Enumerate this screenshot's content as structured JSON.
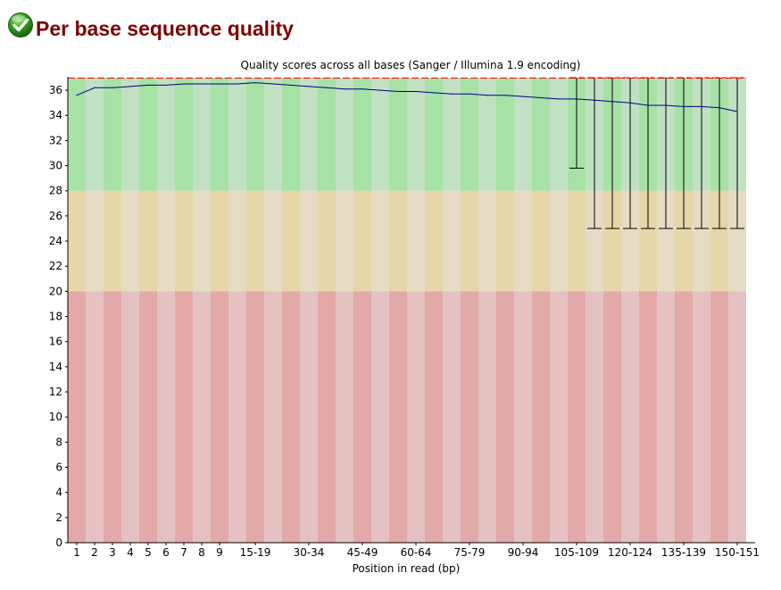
{
  "module": {
    "title": "Per base sequence quality",
    "status_icon": "pass-check-icon",
    "status": "pass"
  },
  "colors": {
    "good_zone": [
      "#a6e2a6",
      "#c2e0c2"
    ],
    "reasonable_zone": [
      "#e6d7a9",
      "#e6dbc5"
    ],
    "poor_zone": [
      "#e3a8a8",
      "#e5c2c2"
    ],
    "mean_line": "#000080",
    "box_fill": "#ffff00",
    "median_line": "#ff0000",
    "whisker": "#000000"
  },
  "chart_data": {
    "type": "box",
    "title": "Quality scores across all bases (Sanger / Illumina 1.9 encoding)",
    "xlabel": "Position in read (bp)",
    "ylabel": "",
    "ylim": [
      0,
      37
    ],
    "yticks": [
      0,
      2,
      4,
      6,
      8,
      10,
      12,
      14,
      16,
      18,
      20,
      22,
      24,
      26,
      28,
      30,
      32,
      34,
      36
    ],
    "zones": [
      {
        "name": "good",
        "from": 28,
        "to": 37
      },
      {
        "name": "reasonable",
        "from": 20,
        "to": 28
      },
      {
        "name": "poor",
        "from": 0,
        "to": 20
      }
    ],
    "categories": [
      "1",
      "2",
      "3",
      "4",
      "5",
      "6",
      "7",
      "8",
      "9",
      "10-14",
      "15-19",
      "20-24",
      "25-29",
      "30-34",
      "35-39",
      "40-44",
      "45-49",
      "50-54",
      "55-59",
      "60-64",
      "65-69",
      "70-74",
      "75-79",
      "80-84",
      "85-89",
      "90-94",
      "95-99",
      "100-104",
      "105-109",
      "110-114",
      "115-119",
      "120-124",
      "125-129",
      "130-134",
      "135-139",
      "140-144",
      "145-149",
      "150-151"
    ],
    "shown_tick_labels": [
      "1",
      "2",
      "3",
      "4",
      "5",
      "6",
      "7",
      "8",
      "9",
      "15-19",
      "30-34",
      "45-49",
      "60-64",
      "75-79",
      "90-94",
      "105-109",
      "120-124",
      "135-139",
      "150-151"
    ],
    "series": [
      {
        "name": "",
        "values": [
          35.6,
          36.2,
          36.2,
          36.3,
          36.4,
          36.4,
          36.5,
          36.5,
          36.5,
          36.5,
          36.6,
          36.5,
          36.4,
          36.3,
          36.2,
          36.1,
          36.1,
          36.0,
          35.9,
          35.9,
          35.8,
          35.7,
          35.7,
          35.6,
          35.6,
          35.5,
          35.4,
          35.3,
          35.3,
          35.2,
          35.1,
          35.0,
          34.8,
          34.8,
          34.7,
          34.7,
          34.6,
          34.3
        ]
      }
    ],
    "whiskers": [
      {
        "category": "105-109",
        "low": 29.8,
        "high": 37
      },
      {
        "category": "110-114",
        "low": 25,
        "high": 37
      },
      {
        "category": "115-119",
        "low": 25,
        "high": 37
      },
      {
        "category": "120-124",
        "low": 25,
        "high": 37
      },
      {
        "category": "125-129",
        "low": 25,
        "high": 37
      },
      {
        "category": "130-134",
        "low": 25,
        "high": 37
      },
      {
        "category": "135-139",
        "low": 25,
        "high": 37
      },
      {
        "category": "140-144",
        "low": 25,
        "high": 37
      },
      {
        "category": "145-149",
        "low": 25,
        "high": 37
      },
      {
        "category": "150-151",
        "low": 25,
        "high": 37
      }
    ],
    "grid": false,
    "legend": "none"
  }
}
